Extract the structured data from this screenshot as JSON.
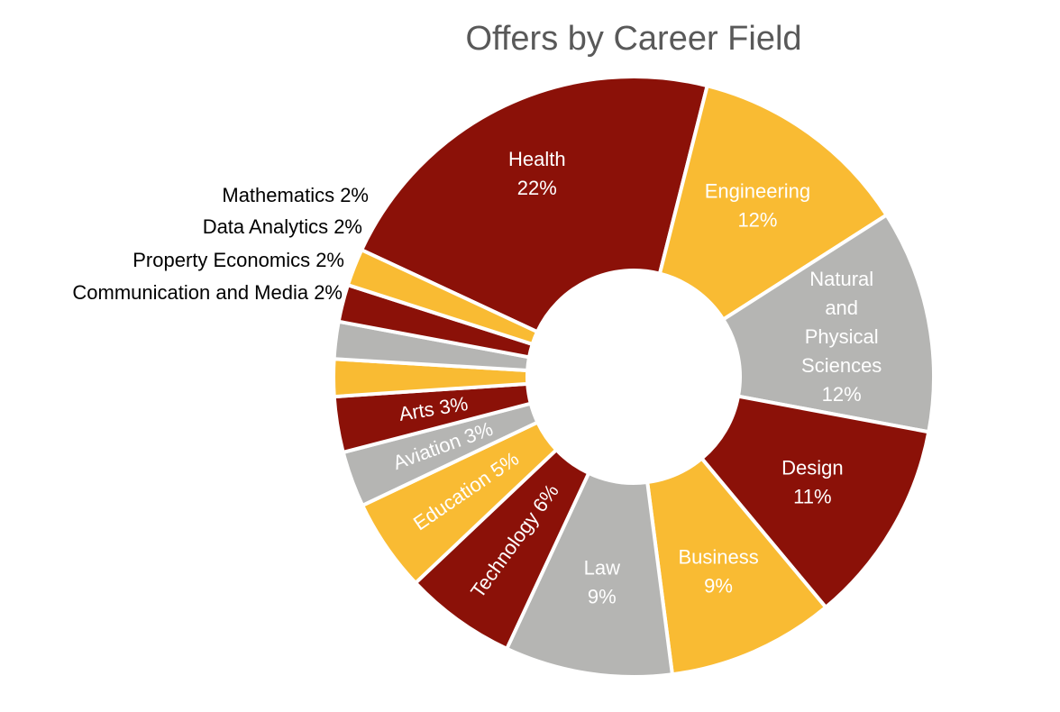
{
  "chart_data": {
    "type": "donut",
    "title": "Offers by Career Field",
    "unit": "%",
    "slices": [
      {
        "label": "Health",
        "value": 22,
        "display": "Health 22%",
        "color": "#8B1108"
      },
      {
        "label": "Engineering",
        "value": 12,
        "display": "Engineering 12%",
        "color": "#F9BB33"
      },
      {
        "label": "Natural and Physical Sciences",
        "value": 12,
        "display": "Natural and Physical Sciences 12%",
        "color": "#B5B5B3"
      },
      {
        "label": "Design",
        "value": 11,
        "display": "Design 11%",
        "color": "#8B1108"
      },
      {
        "label": "Business",
        "value": 9,
        "display": "Business 9%",
        "color": "#F9BB33"
      },
      {
        "label": "Law",
        "value": 9,
        "display": "Law 9%",
        "color": "#B5B5B3"
      },
      {
        "label": "Technology",
        "value": 6,
        "display": "Technology 6%",
        "color": "#8B1108"
      },
      {
        "label": "Education",
        "value": 5,
        "display": "Education 5%",
        "color": "#F9BB33"
      },
      {
        "label": "Aviation",
        "value": 3,
        "display": "Aviation 3%",
        "color": "#B5B5B3"
      },
      {
        "label": "Arts",
        "value": 3,
        "display": "Arts 3%",
        "color": "#8B1108"
      },
      {
        "label": "Communication and Media",
        "value": 2,
        "display": "Communication and Media 2%",
        "color": "#F9BB33"
      },
      {
        "label": "Property Economics",
        "value": 2,
        "display": "Property Economics 2%",
        "color": "#B5B5B3"
      },
      {
        "label": "Data Analytics",
        "value": 2,
        "display": "Data Analytics 2%",
        "color": "#8B1108"
      },
      {
        "label": "Mathematics",
        "value": 2,
        "display": "Mathematics 2%",
        "color": "#F9BB33"
      }
    ]
  }
}
